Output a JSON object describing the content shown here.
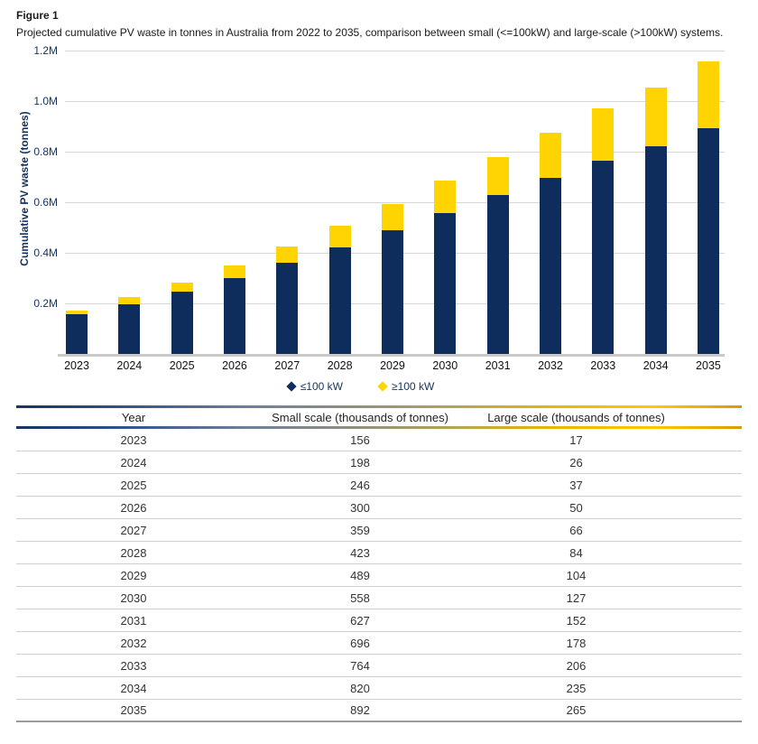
{
  "figure": {
    "label": "Figure 1",
    "caption": "Projected cumulative PV waste in tonnes in Australia from 2022 to 2035, comparison between small (<=100kW) and large-scale (>100kW) systems."
  },
  "colors": {
    "small_scale": "#0f2d5c",
    "large_scale": "#ffd400",
    "axis_text": "#16325c",
    "gridline": "#d6d6d6",
    "baseline": "#c9c9c9"
  },
  "chart_data": {
    "type": "bar",
    "stacked": true,
    "title": "",
    "xlabel": "",
    "ylabel": "Cumulative PV waste (tonnes)",
    "units": "thousands of tonnes",
    "categories": [
      "2023",
      "2024",
      "2025",
      "2026",
      "2027",
      "2028",
      "2029",
      "2030",
      "2031",
      "2032",
      "2033",
      "2034",
      "2035"
    ],
    "series": [
      {
        "name": "≤100 kW",
        "color": "#0f2d5c",
        "values": [
          156,
          198,
          246,
          300,
          359,
          423,
          489,
          558,
          627,
          696,
          764,
          820,
          892
        ]
      },
      {
        "name": "≥100 kW",
        "color": "#ffd400",
        "values": [
          17,
          26,
          37,
          50,
          66,
          84,
          104,
          127,
          152,
          178,
          206,
          235,
          265
        ]
      }
    ],
    "ylim": [
      0,
      1200
    ],
    "yticks": [
      {
        "value": 200,
        "label": "0.2M"
      },
      {
        "value": 400,
        "label": "0.4M"
      },
      {
        "value": 600,
        "label": "0.6M"
      },
      {
        "value": 800,
        "label": "0.8M"
      },
      {
        "value": 1000,
        "label": "1.0M"
      },
      {
        "value": 1200,
        "label": "1.2M"
      }
    ],
    "grid": true,
    "legend_position": "bottom"
  },
  "table": {
    "columns": [
      "Year",
      "Small scale (thousands of tonnes)",
      "Large scale (thousands of tonnes)"
    ],
    "rows": [
      [
        "2023",
        "156",
        "17"
      ],
      [
        "2024",
        "198",
        "26"
      ],
      [
        "2025",
        "246",
        "37"
      ],
      [
        "2026",
        "300",
        "50"
      ],
      [
        "2027",
        "359",
        "66"
      ],
      [
        "2028",
        "423",
        "84"
      ],
      [
        "2029",
        "489",
        "104"
      ],
      [
        "2030",
        "558",
        "127"
      ],
      [
        "2031",
        "627",
        "152"
      ],
      [
        "2032",
        "696",
        "178"
      ],
      [
        "2033",
        "764",
        "206"
      ],
      [
        "2034",
        "820",
        "235"
      ],
      [
        "2035",
        "892",
        "265"
      ]
    ]
  }
}
